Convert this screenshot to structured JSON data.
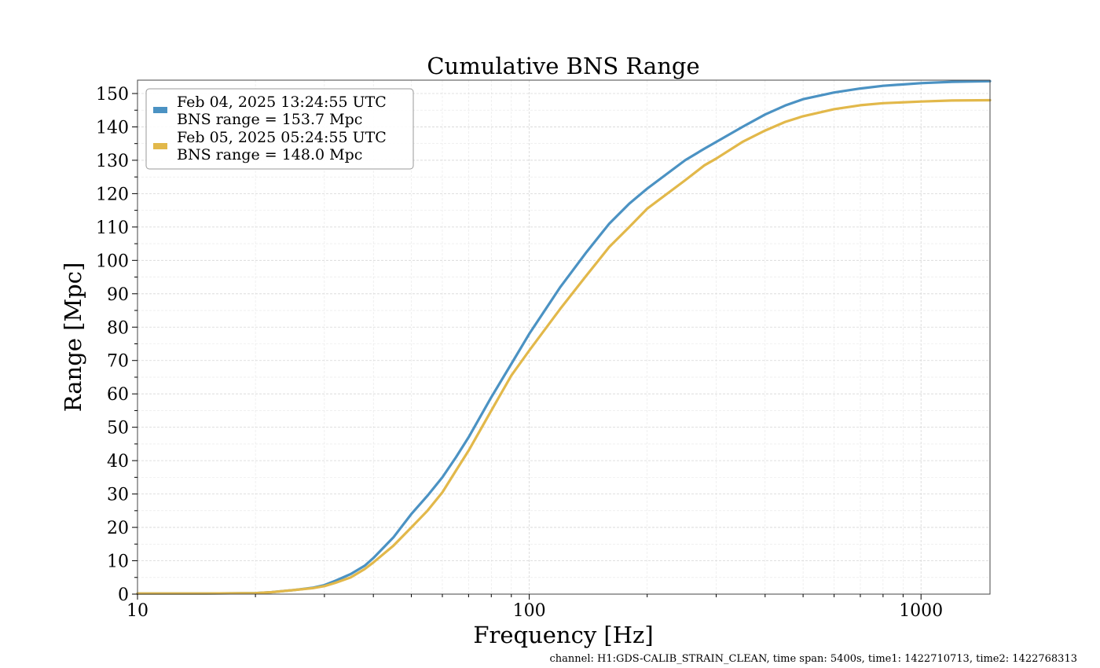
{
  "chart_data": {
    "type": "line",
    "title": "Cumulative BNS Range",
    "xlabel": "Frequency [Hz]",
    "ylabel": "Range [Mpc]",
    "xscale": "log",
    "xlim": [
      10,
      1500
    ],
    "ylim": [
      0,
      154
    ],
    "xticks": [
      10,
      100,
      1000
    ],
    "xtick_labels": [
      "10",
      "100",
      "1000"
    ],
    "yticks": [
      0,
      10,
      20,
      30,
      40,
      50,
      60,
      70,
      80,
      90,
      100,
      110,
      120,
      130,
      140,
      150
    ],
    "ytick_labels": [
      "0",
      "10",
      "20",
      "30",
      "40",
      "50",
      "60",
      "70",
      "80",
      "90",
      "100",
      "110",
      "120",
      "130",
      "140",
      "150"
    ],
    "grid": true,
    "legend_position": "top-left",
    "series": [
      {
        "name": "Feb 04, 2025 13:24:55 UTC",
        "legend_detail": "BNS range = 153.7 Mpc",
        "color": "#4b92c3",
        "x": [
          10,
          15,
          20,
          22,
          25,
          28,
          30,
          32,
          35,
          38,
          40,
          45,
          50,
          55,
          60,
          65,
          70,
          80,
          90,
          100,
          120,
          140,
          160,
          180,
          200,
          250,
          280,
          300,
          350,
          400,
          450,
          500,
          600,
          700,
          800,
          1000,
          1200,
          1500
        ],
        "y": [
          0.2,
          0.2,
          0.3,
          0.6,
          1.2,
          1.9,
          2.7,
          4.0,
          6.0,
          8.5,
          10.8,
          17.0,
          24.0,
          29.5,
          35.0,
          41.0,
          47.0,
          59.0,
          69.0,
          78.0,
          92.0,
          102.5,
          111.0,
          117.0,
          121.5,
          130.0,
          133.5,
          135.5,
          140.0,
          143.7,
          146.4,
          148.3,
          150.3,
          151.5,
          152.3,
          153.1,
          153.5,
          153.7
        ]
      },
      {
        "name": "Feb 05, 2025 05:24:55 UTC",
        "legend_detail": "BNS range = 148.0 Mpc",
        "color": "#e2b84a",
        "x": [
          10,
          15,
          20,
          22,
          25,
          28,
          30,
          32,
          35,
          38,
          40,
          45,
          50,
          55,
          60,
          65,
          70,
          80,
          90,
          100,
          120,
          140,
          160,
          180,
          200,
          250,
          280,
          300,
          350,
          400,
          450,
          500,
          600,
          700,
          800,
          1000,
          1200,
          1500
        ],
        "y": [
          0.2,
          0.2,
          0.3,
          0.6,
          1.2,
          1.8,
          2.4,
          3.4,
          5.0,
          7.5,
          9.5,
          14.5,
          20.0,
          25.0,
          30.5,
          37.0,
          43.0,
          55.0,
          65.5,
          73.0,
          85.5,
          95.5,
          104.0,
          110.0,
          115.5,
          124.0,
          128.5,
          130.5,
          135.5,
          138.9,
          141.5,
          143.2,
          145.3,
          146.5,
          147.1,
          147.6,
          147.9,
          148.0
        ]
      }
    ],
    "footer_note": "channel: H1:GDS-CALIB_STRAIN_CLEAN, time span: 5400s, time1: 1422710713, time2: 1422768313"
  }
}
